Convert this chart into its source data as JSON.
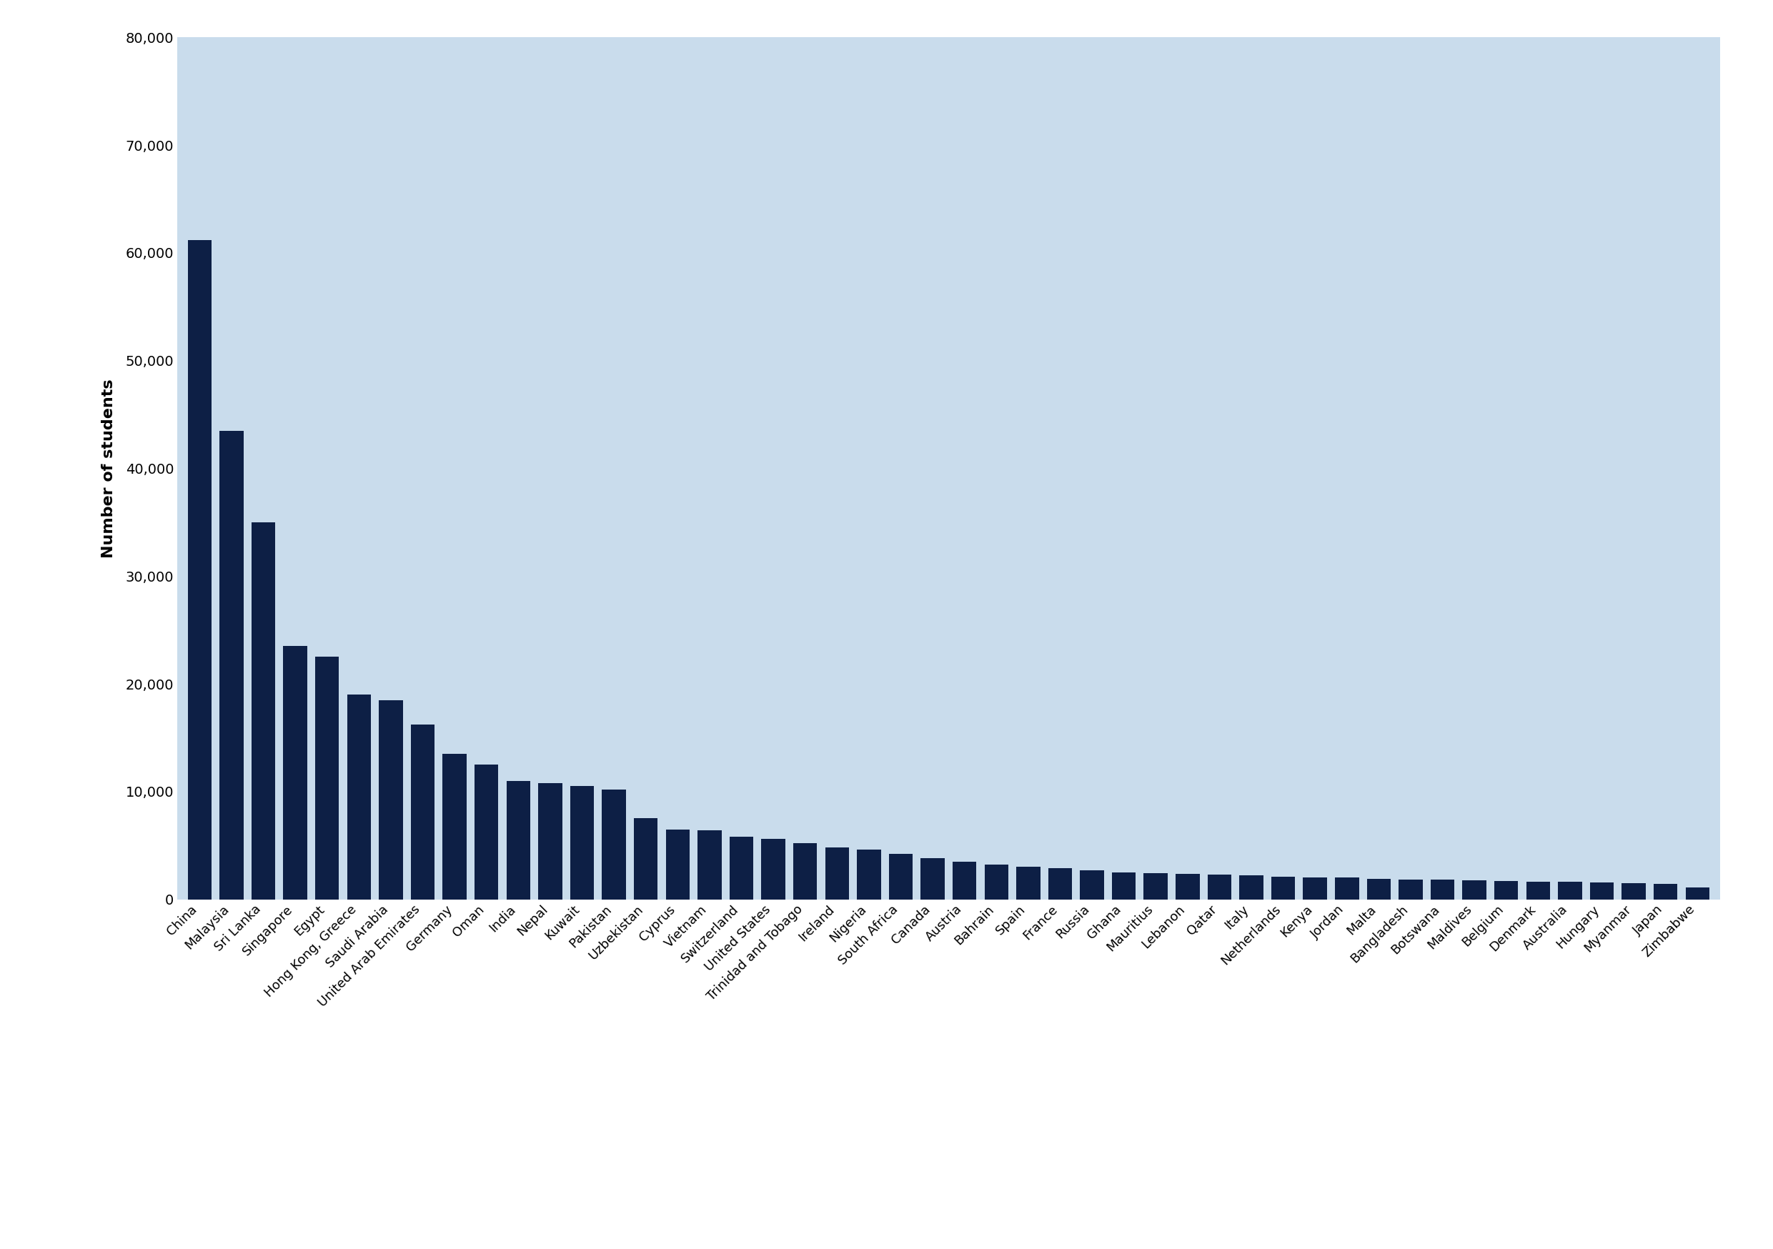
{
  "categories": [
    "China",
    "Malaysia",
    "Sri Lanka",
    "Singapore",
    "Egypt",
    "Hong Kong, Greece",
    "Saudi Arabia",
    "United Arab Emirates",
    "Germany",
    "Oman",
    "India",
    "Nepal",
    "Kuwait",
    "Pakistan",
    "Uzbekistan",
    "Cyprus",
    "Vietnam",
    "Switzerland",
    "United States",
    "Trinidad and Tobago",
    "Ireland",
    "Nigeria",
    "South Africa",
    "Canada",
    "Austria",
    "Bahrain",
    "Spain",
    "France",
    "Russia",
    "Ghana",
    "Mauritius",
    "Lebanon",
    "Qatar",
    "Italy",
    "Netherlands",
    "Kenya",
    "Jordan",
    "Malta",
    "Bangladesh",
    "Botswana",
    "Maldives",
    "Belgium",
    "Denmark",
    "Australia",
    "Hungary",
    "Myanmar",
    "Japan",
    "Zimbabwe"
  ],
  "values": [
    61200,
    43500,
    35000,
    23500,
    22500,
    19000,
    18500,
    16200,
    13500,
    12500,
    11000,
    10800,
    10500,
    10200,
    7500,
    6500,
    6400,
    5800,
    5600,
    5200,
    4800,
    4600,
    4200,
    3800,
    3500,
    3200,
    3000,
    2900,
    2700,
    2500,
    2400,
    2350,
    2300,
    2200,
    2100,
    2050,
    2000,
    1900,
    1850,
    1800,
    1750,
    1700,
    1650,
    1600,
    1550,
    1500,
    1450,
    1100
  ],
  "bar_color": "#0d1f45",
  "background_color": "#c9dcec",
  "outer_background": "#ffffff",
  "ylabel": "Number of students",
  "ylim": [
    0,
    80000
  ],
  "yticks": [
    0,
    10000,
    20000,
    30000,
    40000,
    50000,
    60000,
    70000,
    80000
  ],
  "ylabel_fontsize": 16,
  "ytick_fontsize": 14,
  "xtick_fontsize": 13,
  "bar_width": 0.75
}
